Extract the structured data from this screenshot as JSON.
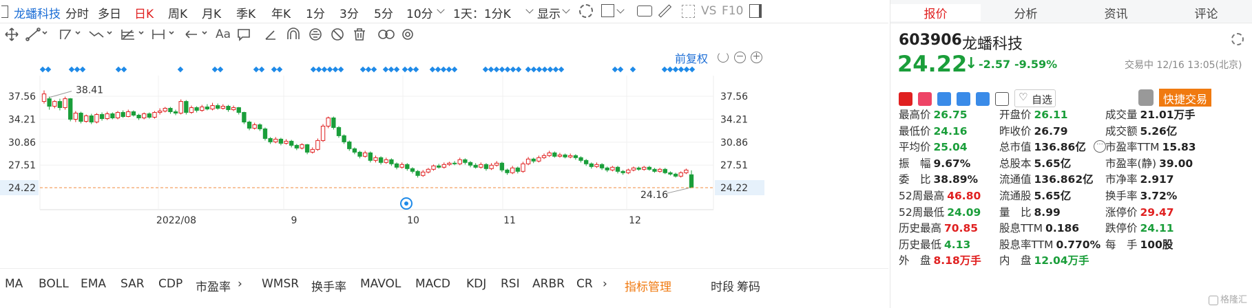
{
  "toolbar": {
    "stock_name": "龙蟠科技",
    "periods": [
      "分时",
      "多日",
      "日K",
      "周K",
      "月K",
      "季K",
      "年K",
      "1分",
      "3分",
      "5分",
      "10分",
      "1天：1分K"
    ],
    "active_period": "日K",
    "display_label": "显示",
    "vs_label": "VS",
    "f10_label": "F10"
  },
  "drawtools": {
    "font_tool_label": "Aa"
  },
  "chart": {
    "adjust_label": "前复权",
    "annotation_high": "38.41",
    "annotation_low": "24.16",
    "current_price_label": "24.22",
    "colors": {
      "up": "#e02020",
      "down": "#1a9e3a",
      "price_line": "#f08a3c",
      "marker": "#1e8ae8"
    }
  },
  "chart_data": {
    "type": "candlestick",
    "title": "",
    "y_ticks": [
      "37.56",
      "34.21",
      "30.86",
      "27.51",
      "24.22"
    ],
    "x_ticks": [
      "2022/08",
      "9",
      "10",
      "11",
      "12"
    ],
    "ylim": [
      22.5,
      39.5
    ],
    "candles": [
      [
        36.8,
        37.9,
        36.5,
        38.41
      ],
      [
        37.2,
        36.1,
        35.6,
        37.5
      ],
      [
        36.1,
        36.8,
        35.8,
        37.0
      ],
      [
        36.8,
        35.9,
        35.5,
        37.2
      ],
      [
        35.9,
        37.2,
        35.6,
        37.5
      ],
      [
        37.2,
        34.2,
        33.9,
        37.3
      ],
      [
        34.2,
        35.1,
        33.8,
        35.4
      ],
      [
        35.1,
        33.9,
        33.6,
        35.3
      ],
      [
        33.9,
        34.7,
        33.7,
        34.9
      ],
      [
        34.7,
        33.8,
        33.5,
        35.0
      ],
      [
        33.8,
        34.9,
        33.6,
        35.1
      ],
      [
        34.9,
        34.3,
        34.0,
        35.2
      ],
      [
        34.3,
        35.0,
        34.1,
        35.3
      ],
      [
        35.0,
        34.4,
        34.2,
        35.2
      ],
      [
        34.4,
        35.2,
        34.2,
        35.4
      ],
      [
        35.2,
        34.6,
        34.4,
        35.5
      ],
      [
        34.6,
        35.3,
        34.5,
        35.6
      ],
      [
        35.3,
        34.8,
        34.6,
        35.5
      ],
      [
        34.8,
        34.4,
        34.1,
        35.0
      ],
      [
        34.4,
        35.0,
        34.2,
        35.2
      ],
      [
        35.0,
        34.5,
        34.3,
        35.2
      ],
      [
        34.5,
        35.2,
        34.3,
        35.4
      ],
      [
        35.2,
        35.4,
        34.9,
        35.8
      ],
      [
        35.4,
        35.8,
        35.2,
        36.0
      ],
      [
        35.8,
        35.3,
        35.0,
        36.0
      ],
      [
        35.3,
        35.1,
        34.8,
        35.6
      ],
      [
        35.1,
        36.8,
        34.9,
        37.1
      ],
      [
        36.8,
        35.2,
        34.9,
        37.0
      ],
      [
        35.2,
        35.9,
        35.0,
        36.2
      ],
      [
        35.9,
        35.5,
        35.2,
        36.1
      ],
      [
        35.5,
        36.0,
        35.3,
        36.3
      ],
      [
        36.0,
        35.7,
        35.5,
        36.4
      ],
      [
        35.7,
        36.2,
        35.5,
        36.6
      ],
      [
        36.2,
        35.8,
        35.6,
        36.5
      ],
      [
        35.8,
        36.1,
        35.6,
        36.4
      ],
      [
        36.1,
        35.6,
        35.3,
        36.3
      ],
      [
        35.6,
        35.9,
        35.4,
        36.2
      ],
      [
        35.9,
        35.2,
        34.9,
        36.0
      ],
      [
        35.2,
        33.8,
        33.5,
        35.3
      ],
      [
        33.8,
        32.9,
        32.6,
        34.0
      ],
      [
        32.9,
        33.4,
        32.7,
        33.7
      ],
      [
        33.4,
        32.8,
        32.5,
        33.6
      ],
      [
        32.8,
        31.4,
        31.1,
        33.0
      ],
      [
        31.4,
        30.9,
        30.6,
        31.6
      ],
      [
        30.9,
        31.3,
        30.7,
        31.6
      ],
      [
        31.3,
        30.7,
        30.4,
        31.5
      ],
      [
        30.7,
        31.0,
        30.5,
        31.3
      ],
      [
        31.0,
        30.4,
        30.1,
        31.2
      ],
      [
        30.4,
        30.0,
        29.7,
        30.6
      ],
      [
        30.0,
        30.5,
        29.8,
        30.7
      ],
      [
        30.5,
        29.4,
        29.1,
        30.6
      ],
      [
        29.4,
        29.8,
        29.2,
        30.1
      ],
      [
        29.8,
        31.1,
        29.6,
        31.4
      ],
      [
        31.1,
        33.2,
        30.9,
        33.5
      ],
      [
        33.2,
        34.4,
        32.9,
        34.6
      ],
      [
        34.4,
        33.0,
        32.7,
        34.6
      ],
      [
        33.0,
        31.8,
        31.5,
        33.2
      ],
      [
        31.8,
        30.9,
        30.6,
        32.0
      ],
      [
        30.9,
        29.9,
        29.6,
        31.1
      ],
      [
        29.9,
        29.4,
        29.1,
        30.1
      ],
      [
        29.4,
        28.8,
        28.5,
        29.6
      ],
      [
        28.8,
        29.3,
        28.6,
        29.6
      ],
      [
        29.3,
        28.2,
        27.9,
        29.5
      ],
      [
        28.2,
        28.6,
        27.9,
        28.9
      ],
      [
        28.6,
        27.9,
        27.6,
        28.8
      ],
      [
        27.9,
        28.3,
        27.7,
        28.6
      ],
      [
        28.3,
        27.7,
        27.4,
        28.5
      ],
      [
        27.7,
        27.2,
        26.9,
        27.9
      ],
      [
        27.2,
        27.6,
        27.0,
        27.9
      ],
      [
        27.6,
        27.0,
        26.7,
        27.8
      ],
      [
        27.0,
        26.6,
        26.3,
        27.2
      ],
      [
        26.6,
        26.0,
        25.7,
        26.8
      ],
      [
        26.0,
        26.5,
        25.8,
        26.8
      ],
      [
        26.5,
        26.9,
        26.3,
        27.1
      ],
      [
        26.9,
        27.4,
        26.7,
        27.6
      ],
      [
        27.4,
        27.2,
        27.0,
        27.7
      ],
      [
        27.2,
        27.6,
        27.0,
        27.9
      ],
      [
        27.6,
        27.8,
        27.4,
        28.0
      ],
      [
        27.8,
        27.7,
        27.5,
        28.1
      ],
      [
        27.7,
        28.3,
        27.5,
        28.6
      ],
      [
        28.3,
        27.9,
        27.6,
        28.5
      ],
      [
        27.9,
        27.5,
        27.2,
        28.1
      ],
      [
        27.5,
        27.2,
        27.0,
        27.8
      ],
      [
        27.2,
        27.6,
        27.0,
        27.9
      ],
      [
        27.6,
        27.0,
        26.7,
        27.8
      ],
      [
        27.0,
        27.5,
        26.8,
        27.8
      ],
      [
        27.5,
        27.8,
        27.3,
        28.1
      ],
      [
        27.8,
        26.8,
        26.5,
        28.0
      ],
      [
        26.8,
        26.4,
        26.1,
        27.0
      ],
      [
        26.4,
        27.1,
        26.2,
        27.4
      ],
      [
        27.1,
        26.6,
        26.3,
        27.3
      ],
      [
        26.6,
        27.7,
        26.4,
        28.0
      ],
      [
        27.7,
        28.4,
        27.5,
        28.7
      ],
      [
        28.4,
        28.1,
        27.8,
        28.6
      ],
      [
        28.1,
        28.6,
        27.9,
        28.9
      ],
      [
        28.6,
        28.9,
        28.4,
        29.2
      ],
      [
        28.9,
        29.3,
        28.7,
        29.6
      ],
      [
        29.3,
        28.8,
        28.6,
        29.5
      ],
      [
        28.8,
        29.0,
        28.6,
        29.3
      ],
      [
        29.0,
        28.7,
        28.5,
        29.2
      ],
      [
        28.7,
        28.9,
        28.5,
        29.2
      ],
      [
        28.9,
        28.6,
        28.3,
        29.1
      ],
      [
        28.6,
        28.2,
        27.9,
        28.8
      ],
      [
        28.2,
        27.7,
        27.4,
        28.4
      ],
      [
        27.7,
        27.3,
        27.0,
        27.9
      ],
      [
        27.3,
        27.6,
        27.1,
        27.9
      ],
      [
        27.6,
        27.1,
        26.8,
        27.8
      ],
      [
        27.1,
        26.8,
        26.5,
        27.3
      ],
      [
        26.8,
        27.2,
        26.6,
        27.4
      ],
      [
        27.2,
        26.6,
        26.3,
        27.4
      ],
      [
        26.6,
        26.4,
        26.1,
        26.8
      ],
      [
        26.4,
        26.8,
        26.2,
        27.0
      ],
      [
        26.8,
        27.1,
        26.6,
        27.3
      ],
      [
        27.1,
        26.9,
        26.7,
        27.3
      ],
      [
        26.9,
        27.2,
        26.7,
        27.4
      ],
      [
        27.2,
        26.9,
        26.7,
        27.4
      ],
      [
        26.9,
        26.6,
        26.4,
        27.1
      ],
      [
        26.6,
        26.9,
        26.4,
        27.1
      ],
      [
        26.9,
        26.4,
        26.2,
        27.1
      ],
      [
        26.4,
        26.2,
        26.0,
        26.6
      ],
      [
        26.2,
        25.9,
        25.7,
        26.4
      ],
      [
        25.9,
        26.4,
        25.7,
        26.6
      ],
      [
        26.4,
        26.79,
        26.2,
        27.0
      ],
      [
        26.11,
        24.22,
        24.16,
        26.75
      ]
    ],
    "markers_row": "blue diamonds above candles"
  },
  "indicators": {
    "items": [
      "MA",
      "BOLL",
      "EMA",
      "SAR",
      "CDP",
      "市盈率",
      "WMSR",
      "换手率",
      "MAVOL",
      "MACD",
      "KDJ",
      "RSI",
      "ARBR",
      "CR"
    ],
    "manage_label": "指标管理",
    "right_items": [
      "时段",
      "筹码"
    ]
  },
  "panel": {
    "tabs": [
      "报价",
      "分析",
      "资讯",
      "评论"
    ],
    "code": "603906",
    "name": "龙蟠科技",
    "price": "24.22",
    "change": "-2.57",
    "change_pct": "-9.59%",
    "status": "交易中 12/16 13:05(北京)",
    "watchlist_label": "自选",
    "quick_trade_label": "快捷交易",
    "stats": [
      [
        {
          "k": "最高价",
          "v": "26.75",
          "c": "green"
        },
        {
          "k": "开盘价",
          "v": "26.11",
          "c": "green"
        },
        {
          "k": "成交量",
          "v": "21.01万手",
          "c": "dark"
        }
      ],
      [
        {
          "k": "最低价",
          "v": "24.16",
          "c": "green"
        },
        {
          "k": "昨收价",
          "v": "26.79",
          "c": "dark"
        },
        {
          "k": "成交额",
          "v": "5.26亿",
          "c": "dark"
        }
      ],
      [
        {
          "k": "平均价",
          "v": "25.04",
          "c": "green"
        },
        {
          "k": "总市值",
          "v": "136.86亿",
          "c": "dark"
        },
        {
          "k": "市盈率TTM",
          "v": "15.83",
          "c": "dark"
        }
      ],
      [
        {
          "k": "振　幅",
          "v": "9.67%",
          "c": "dark"
        },
        {
          "k": "总股本",
          "v": "5.65亿",
          "c": "dark"
        },
        {
          "k": "市盈率(静)",
          "v": "39.00",
          "c": "dark"
        }
      ],
      [
        {
          "k": "委　比",
          "v": "38.89%",
          "c": "dark"
        },
        {
          "k": "流通值",
          "v": "136.862亿",
          "c": "dark"
        },
        {
          "k": "市净率",
          "v": "2.917",
          "c": "dark"
        }
      ],
      [
        {
          "k": "52周最高",
          "v": "46.80",
          "c": "red"
        },
        {
          "k": "流通股",
          "v": "5.65亿",
          "c": "dark"
        },
        {
          "k": "换手率",
          "v": "3.72%",
          "c": "dark"
        }
      ],
      [
        {
          "k": "52周最低",
          "v": "24.09",
          "c": "green"
        },
        {
          "k": "量　比",
          "v": "8.99",
          "c": "dark"
        },
        {
          "k": "涨停价",
          "v": "29.47",
          "c": "red"
        }
      ],
      [
        {
          "k": "历史最高",
          "v": "70.85",
          "c": "red"
        },
        {
          "k": "股息TTM",
          "v": "0.186",
          "c": "dark"
        },
        {
          "k": "跌停价",
          "v": "24.11",
          "c": "green"
        }
      ],
      [
        {
          "k": "历史最低",
          "v": "4.13",
          "c": "green"
        },
        {
          "k": "股息率TTM",
          "v": "0.770%",
          "c": "dark"
        },
        {
          "k": "每　手",
          "v": "100股",
          "c": "dark"
        }
      ],
      [
        {
          "k": "外　盘",
          "v": "8.18万手",
          "c": "red"
        },
        {
          "k": "内　盘",
          "v": "12.04万手",
          "c": "green"
        },
        {
          "k": "",
          "v": "",
          "c": "dark"
        }
      ]
    ],
    "watermark": "格隆汇"
  }
}
